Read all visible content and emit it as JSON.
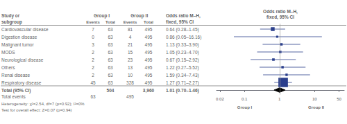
{
  "chart_data": {
    "type": "forest",
    "title": "Odds ratio M–H,\nfixed, 95% CI",
    "table_header": {
      "study": [
        "Study or",
        "subgroup"
      ],
      "group1": "Group I",
      "group2": "Group II",
      "events": "Events",
      "total": "Total",
      "effect": [
        "Odds ratio M–H,",
        "fixed, 95% CI"
      ]
    },
    "studies": [
      {
        "label": "Cardiovascular disease",
        "g1_events": 7,
        "g1_total": 63,
        "g2_events": 81,
        "g2_total": 495,
        "or": 0.64,
        "ci_low": 0.28,
        "ci_high": 1.45,
        "or_str": "0.64 (0.28–1.45)"
      },
      {
        "label": "Digestion disease",
        "g1_events": 0,
        "g1_total": 63,
        "g2_events": 4,
        "g2_total": 495,
        "or": 0.86,
        "ci_low": 0.05,
        "ci_high": 16.16,
        "or_str": "0.86 (0.05–16.16)"
      },
      {
        "label": "Malignant tumor",
        "g1_events": 3,
        "g1_total": 63,
        "g2_events": 21,
        "g2_total": 495,
        "or": 1.13,
        "ci_low": 0.33,
        "ci_high": 3.9,
        "or_str": "1.13 (0.33–3.90)"
      },
      {
        "label": "MODS",
        "g1_events": 2,
        "g1_total": 63,
        "g2_events": 15,
        "g2_total": 495,
        "or": 1.05,
        "ci_low": 0.23,
        "ci_high": 4.7,
        "or_str": "1.05 (0.23–4.70)"
      },
      {
        "label": "Neurological disease",
        "g1_events": 2,
        "g1_total": 63,
        "g2_events": 23,
        "g2_total": 495,
        "or": 0.67,
        "ci_low": 0.15,
        "ci_high": 2.92,
        "or_str": "0.67 (0.15–2.92)"
      },
      {
        "label": "Others",
        "g1_events": 2,
        "g1_total": 63,
        "g2_events": 13,
        "g2_total": 495,
        "or": 1.22,
        "ci_low": 0.27,
        "ci_high": 5.52,
        "or_str": "1.22 (0.27–5.52)"
      },
      {
        "label": "Renal disease",
        "g1_events": 2,
        "g1_total": 63,
        "g2_events": 10,
        "g2_total": 495,
        "or": 1.59,
        "ci_low": 0.34,
        "ci_high": 7.43,
        "or_str": "1.59 (0.34–7.43)"
      },
      {
        "label": "Respiratory disease",
        "g1_events": 45,
        "g1_total": 63,
        "g2_events": 328,
        "g2_total": 495,
        "or": 1.27,
        "ci_low": 0.71,
        "ci_high": 2.27,
        "or_str": "1.27 (0.71–2.27)"
      }
    ],
    "total": {
      "label": "Total (95% CI)",
      "or": 1.01,
      "ci_low": 0.7,
      "ci_high": 1.46,
      "or_str": "1.01 (0.70–1.46)",
      "g1_total": "504",
      "g2_total": "3,960",
      "color": "#000000"
    },
    "total_events": {
      "label": "Total events",
      "g1": 63,
      "g2": 495
    },
    "annotations": [
      "Heterogeneity: χ²=2.54, df=7 (p=0.92); I²=0%",
      "Test for overall effect: Z=0.07 (p=0.94)"
    ],
    "xlabels": [
      "Group I",
      "Group II"
    ],
    "xlim": [
      0.016,
      70
    ],
    "xticks": [
      0.02,
      0.1,
      1,
      10,
      50
    ],
    "log": "x",
    "grid": false,
    "reference": 1,
    "color": "#2b3f8c"
  }
}
